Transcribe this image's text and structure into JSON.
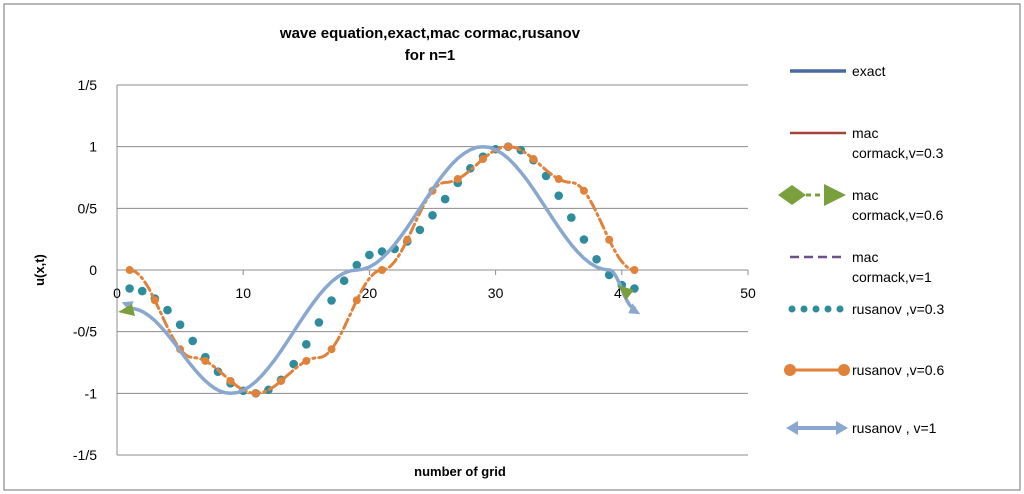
{
  "chart_data": {
    "type": "line",
    "title": "wave equation,exact,mac cormac,rusanov",
    "subtitle": "for n=1",
    "xlabel": "number of grid",
    "ylabel": "u(x,t)",
    "xlim": [
      0,
      50
    ],
    "ylim": [
      -1.5,
      1.5
    ],
    "x_ticks": [
      "0",
      "10",
      "20",
      "30",
      "40",
      "50"
    ],
    "y_ticks": [
      "1/5",
      "1",
      "0/5",
      "0",
      "-0/5",
      "-1",
      "-1/5"
    ],
    "grid": "horizontal",
    "legend_position": "right",
    "series": [
      {
        "name": "exact",
        "color": "#4a6a9e",
        "style": "solid",
        "x": [
          1,
          9,
          19,
          29,
          39,
          41
        ],
        "y": [
          -0.31,
          -1.0,
          0.0,
          1.0,
          0.0,
          -0.31
        ]
      },
      {
        "name": "mac cormack,v=0.3",
        "color": "#a6433b",
        "style": "solid",
        "x": [
          1,
          9,
          19,
          29,
          39,
          41
        ],
        "y": [
          -0.31,
          -1.0,
          0.0,
          1.0,
          0.0,
          -0.31
        ]
      },
      {
        "name": "mac cormack,v=0.6",
        "color": "#7aa03e",
        "style": "dash-dot-triangle",
        "x": [
          1,
          9,
          19,
          29,
          39,
          41
        ],
        "y": [
          -0.31,
          -1.0,
          0.0,
          1.0,
          0.0,
          -0.31
        ]
      },
      {
        "name": "mac cormack,v=1",
        "color": "#6b4f8e",
        "style": "dashed",
        "x": [
          1,
          9,
          19,
          29,
          39,
          41
        ],
        "y": [
          -0.31,
          -1.0,
          0.0,
          1.0,
          0.0,
          -0.31
        ]
      },
      {
        "name": "rusanov ,v=0.3",
        "color": "#2f8c9c",
        "style": "dotted",
        "x": [
          1,
          11,
          21,
          31,
          41
        ],
        "y": [
          -0.15,
          -1.0,
          0.15,
          1.0,
          -0.15
        ]
      },
      {
        "name": "rusanov ,v=0.6",
        "color": "#e0823a",
        "style": "dash-dot-circle",
        "x": [
          1,
          6,
          11,
          16,
          21,
          26,
          31,
          36,
          41
        ],
        "y": [
          0.0,
          -0.71,
          -1.0,
          -0.71,
          0.0,
          0.71,
          1.0,
          0.71,
          0.0
        ]
      },
      {
        "name": "rusanov , v=1",
        "color": "#8aa8cf",
        "style": "solid-arrow",
        "x": [
          1,
          9,
          19,
          29,
          39,
          41
        ],
        "y": [
          -0.31,
          -1.0,
          0.0,
          1.0,
          0.0,
          -0.31
        ]
      }
    ]
  }
}
